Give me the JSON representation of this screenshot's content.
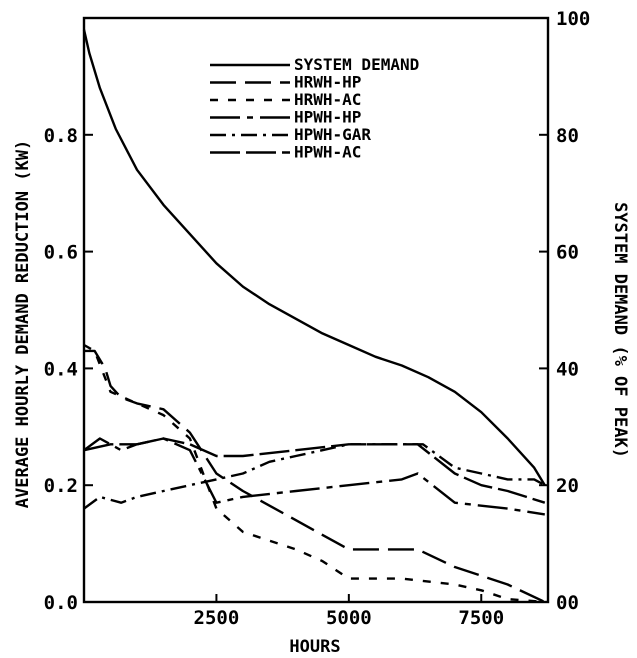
{
  "chart_data": {
    "type": "line",
    "title": "",
    "xlabel": "HOURS",
    "ylabel": "AVERAGE HOURLY DEMAND REDUCTION (KW)",
    "y2label": "SYSTEM DEMAND (% OF PEAK)",
    "xlim": [
      0,
      8760
    ],
    "ylim": [
      0,
      1.0
    ],
    "y2lim": [
      0,
      100
    ],
    "x_ticks": [
      2500,
      5000,
      7500
    ],
    "x_tick_labels": [
      "2500",
      "5000",
      "7500"
    ],
    "y_ticks": [
      0,
      0.2,
      0.4,
      0.6,
      0.8
    ],
    "y_tick_labels": [
      "0.0",
      "0.2",
      "0.4",
      "0.6",
      "0.8"
    ],
    "y2_ticks": [
      0,
      20,
      40,
      60,
      80,
      100
    ],
    "y2_tick_labels": [
      "00",
      "20",
      "40",
      "60",
      "80",
      "100"
    ],
    "grid": false,
    "legend_position": "top-center",
    "series": [
      {
        "name": "SYSTEM DEMAND",
        "axis": "right",
        "dash": "solid",
        "points": [
          [
            0,
            98
          ],
          [
            100,
            94
          ],
          [
            300,
            88
          ],
          [
            600,
            81
          ],
          [
            1000,
            74
          ],
          [
            1500,
            68
          ],
          [
            2000,
            63
          ],
          [
            2500,
            58
          ],
          [
            3000,
            54
          ],
          [
            3500,
            51
          ],
          [
            4000,
            48.5
          ],
          [
            4500,
            46
          ],
          [
            5000,
            44
          ],
          [
            5500,
            42
          ],
          [
            6000,
            40.5
          ],
          [
            6500,
            38.5
          ],
          [
            7000,
            36
          ],
          [
            7500,
            32.5
          ],
          [
            8000,
            28
          ],
          [
            8500,
            23
          ],
          [
            8700,
            20
          ]
        ]
      },
      {
        "name": "HRWH-HP",
        "axis": "left",
        "dash": "long",
        "points": [
          [
            0,
            0.43
          ],
          [
            200,
            0.43
          ],
          [
            400,
            0.4
          ],
          [
            500,
            0.37
          ],
          [
            700,
            0.35
          ],
          [
            1000,
            0.34
          ],
          [
            1500,
            0.33
          ],
          [
            2000,
            0.29
          ],
          [
            2500,
            0.22
          ],
          [
            3000,
            0.19
          ],
          [
            4000,
            0.14
          ],
          [
            4800,
            0.1
          ],
          [
            5000,
            0.09
          ],
          [
            5500,
            0.09
          ],
          [
            6300,
            0.09
          ],
          [
            7000,
            0.06
          ],
          [
            8000,
            0.03
          ],
          [
            8700,
            0.0
          ]
        ]
      },
      {
        "name": "HRWH-AC",
        "axis": "left",
        "dash": "short",
        "points": [
          [
            0,
            0.44
          ],
          [
            200,
            0.43
          ],
          [
            500,
            0.36
          ],
          [
            1000,
            0.34
          ],
          [
            1500,
            0.32
          ],
          [
            2000,
            0.28
          ],
          [
            2500,
            0.16
          ],
          [
            3000,
            0.12
          ],
          [
            4000,
            0.09
          ],
          [
            4500,
            0.07
          ],
          [
            5000,
            0.04
          ],
          [
            6000,
            0.04
          ],
          [
            7000,
            0.03
          ],
          [
            7500,
            0.02
          ],
          [
            8000,
            0.005
          ],
          [
            8700,
            0.0
          ]
        ]
      },
      {
        "name": "HPWH-HP",
        "axis": "left",
        "dash": "longshort",
        "points": [
          [
            0,
            0.26
          ],
          [
            300,
            0.28
          ],
          [
            700,
            0.26
          ],
          [
            1000,
            0.27
          ],
          [
            1500,
            0.28
          ],
          [
            2000,
            0.26
          ],
          [
            2500,
            0.17
          ],
          [
            3000,
            0.18
          ],
          [
            4000,
            0.19
          ],
          [
            5000,
            0.2
          ],
          [
            6000,
            0.21
          ],
          [
            6300,
            0.22
          ],
          [
            7000,
            0.17
          ],
          [
            8000,
            0.16
          ],
          [
            8700,
            0.15
          ]
        ]
      },
      {
        "name": "HPWH-GAR",
        "axis": "left",
        "dash": "dashdot",
        "points": [
          [
            0,
            0.16
          ],
          [
            300,
            0.18
          ],
          [
            700,
            0.17
          ],
          [
            1000,
            0.18
          ],
          [
            1500,
            0.19
          ],
          [
            2000,
            0.2
          ],
          [
            2500,
            0.21
          ],
          [
            3000,
            0.22
          ],
          [
            3500,
            0.24
          ],
          [
            4000,
            0.25
          ],
          [
            4500,
            0.26
          ],
          [
            5000,
            0.27
          ],
          [
            6000,
            0.27
          ],
          [
            6400,
            0.27
          ],
          [
            7000,
            0.23
          ],
          [
            7500,
            0.22
          ],
          [
            8000,
            0.21
          ],
          [
            8500,
            0.21
          ],
          [
            8700,
            0.2
          ]
        ]
      },
      {
        "name": "HPWH-AC",
        "axis": "left",
        "dash": "longgap",
        "points": [
          [
            0,
            0.26
          ],
          [
            500,
            0.27
          ],
          [
            1000,
            0.27
          ],
          [
            1500,
            0.28
          ],
          [
            2000,
            0.27
          ],
          [
            2500,
            0.25
          ],
          [
            3000,
            0.25
          ],
          [
            4000,
            0.26
          ],
          [
            5000,
            0.27
          ],
          [
            6000,
            0.27
          ],
          [
            6300,
            0.27
          ],
          [
            7000,
            0.22
          ],
          [
            7500,
            0.2
          ],
          [
            8000,
            0.19
          ],
          [
            8700,
            0.17
          ]
        ]
      }
    ]
  }
}
